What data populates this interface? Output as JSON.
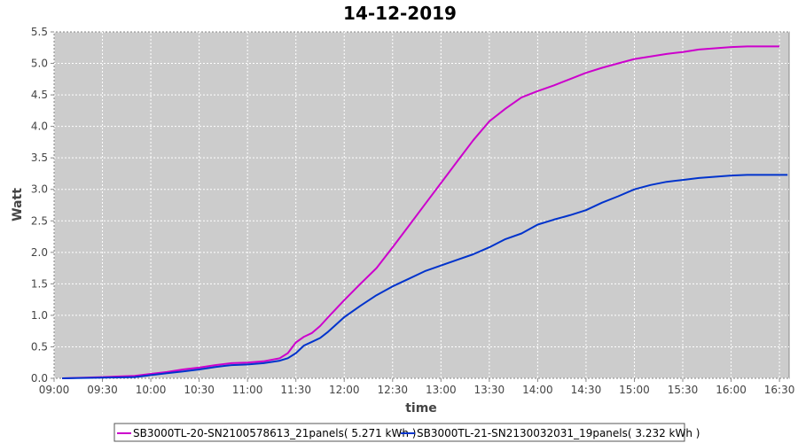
{
  "chart_data": {
    "type": "line",
    "title": "14-12-2019",
    "xlabel": "time",
    "ylabel": "Watt",
    "ylim": [
      0,
      5.5
    ],
    "xlim": [
      "09:00",
      "16:36"
    ],
    "yticks": [
      "0.0",
      "0.5",
      "1.0",
      "1.5",
      "2.0",
      "2.5",
      "3.0",
      "3.5",
      "4.0",
      "4.5",
      "5.0",
      "5.5"
    ],
    "xticks": [
      "09:00",
      "09:30",
      "10:00",
      "10:30",
      "11:00",
      "11:30",
      "12:00",
      "12:30",
      "13:00",
      "13:30",
      "14:00",
      "14:30",
      "15:00",
      "15:30",
      "16:00",
      "16:30"
    ],
    "grid": true,
    "legend_position": "bottom",
    "background": "#cccccc",
    "series": [
      {
        "name": "SB3000TL-20-SN2100578613_21panels( 5.271 kWh )",
        "color": "#cc00cc",
        "x": [
          "09:05",
          "09:30",
          "09:50",
          "10:00",
          "10:10",
          "10:20",
          "10:30",
          "10:40",
          "10:50",
          "11:00",
          "11:10",
          "11:20",
          "11:25",
          "11:30",
          "11:35",
          "11:40",
          "11:45",
          "11:50",
          "12:00",
          "12:10",
          "12:20",
          "12:30",
          "12:40",
          "12:50",
          "13:00",
          "13:10",
          "13:20",
          "13:30",
          "13:40",
          "13:50",
          "14:00",
          "14:10",
          "14:20",
          "14:30",
          "14:40",
          "14:50",
          "15:00",
          "15:10",
          "15:20",
          "15:30",
          "15:40",
          "15:50",
          "16:00",
          "16:10",
          "16:20",
          "16:30"
        ],
        "values": [
          0.0,
          0.02,
          0.04,
          0.07,
          0.1,
          0.14,
          0.17,
          0.21,
          0.24,
          0.25,
          0.27,
          0.32,
          0.4,
          0.57,
          0.66,
          0.72,
          0.83,
          0.97,
          1.24,
          1.5,
          1.75,
          2.08,
          2.42,
          2.76,
          3.1,
          3.44,
          3.78,
          4.08,
          4.28,
          4.46,
          4.56,
          4.65,
          4.75,
          4.85,
          4.93,
          5.0,
          5.07,
          5.11,
          5.15,
          5.18,
          5.22,
          5.24,
          5.26,
          5.27,
          5.27,
          5.27
        ]
      },
      {
        "name": "SB3000TL-21-SN2130032031_19panels( 3.232 kWh )",
        "color": "#0033cc",
        "x": [
          "09:05",
          "09:30",
          "09:50",
          "10:00",
          "10:10",
          "10:20",
          "10:30",
          "10:40",
          "10:50",
          "11:00",
          "11:10",
          "11:20",
          "11:25",
          "11:30",
          "11:35",
          "11:40",
          "11:45",
          "11:50",
          "12:00",
          "12:10",
          "12:20",
          "12:30",
          "12:40",
          "12:50",
          "13:00",
          "13:10",
          "13:20",
          "13:30",
          "13:40",
          "13:50",
          "14:00",
          "14:10",
          "14:20",
          "14:30",
          "14:40",
          "14:50",
          "15:00",
          "15:10",
          "15:20",
          "15:30",
          "15:40",
          "15:50",
          "16:00",
          "16:10",
          "16:20",
          "16:35"
        ],
        "values": [
          0.0,
          0.01,
          0.02,
          0.05,
          0.08,
          0.11,
          0.14,
          0.18,
          0.21,
          0.22,
          0.24,
          0.28,
          0.32,
          0.4,
          0.52,
          0.58,
          0.64,
          0.74,
          0.97,
          1.15,
          1.32,
          1.46,
          1.58,
          1.7,
          1.79,
          1.88,
          1.97,
          2.08,
          2.21,
          2.3,
          2.44,
          2.52,
          2.59,
          2.67,
          2.79,
          2.89,
          3.0,
          3.07,
          3.12,
          3.15,
          3.18,
          3.2,
          3.22,
          3.23,
          3.23,
          3.23
        ]
      }
    ]
  }
}
